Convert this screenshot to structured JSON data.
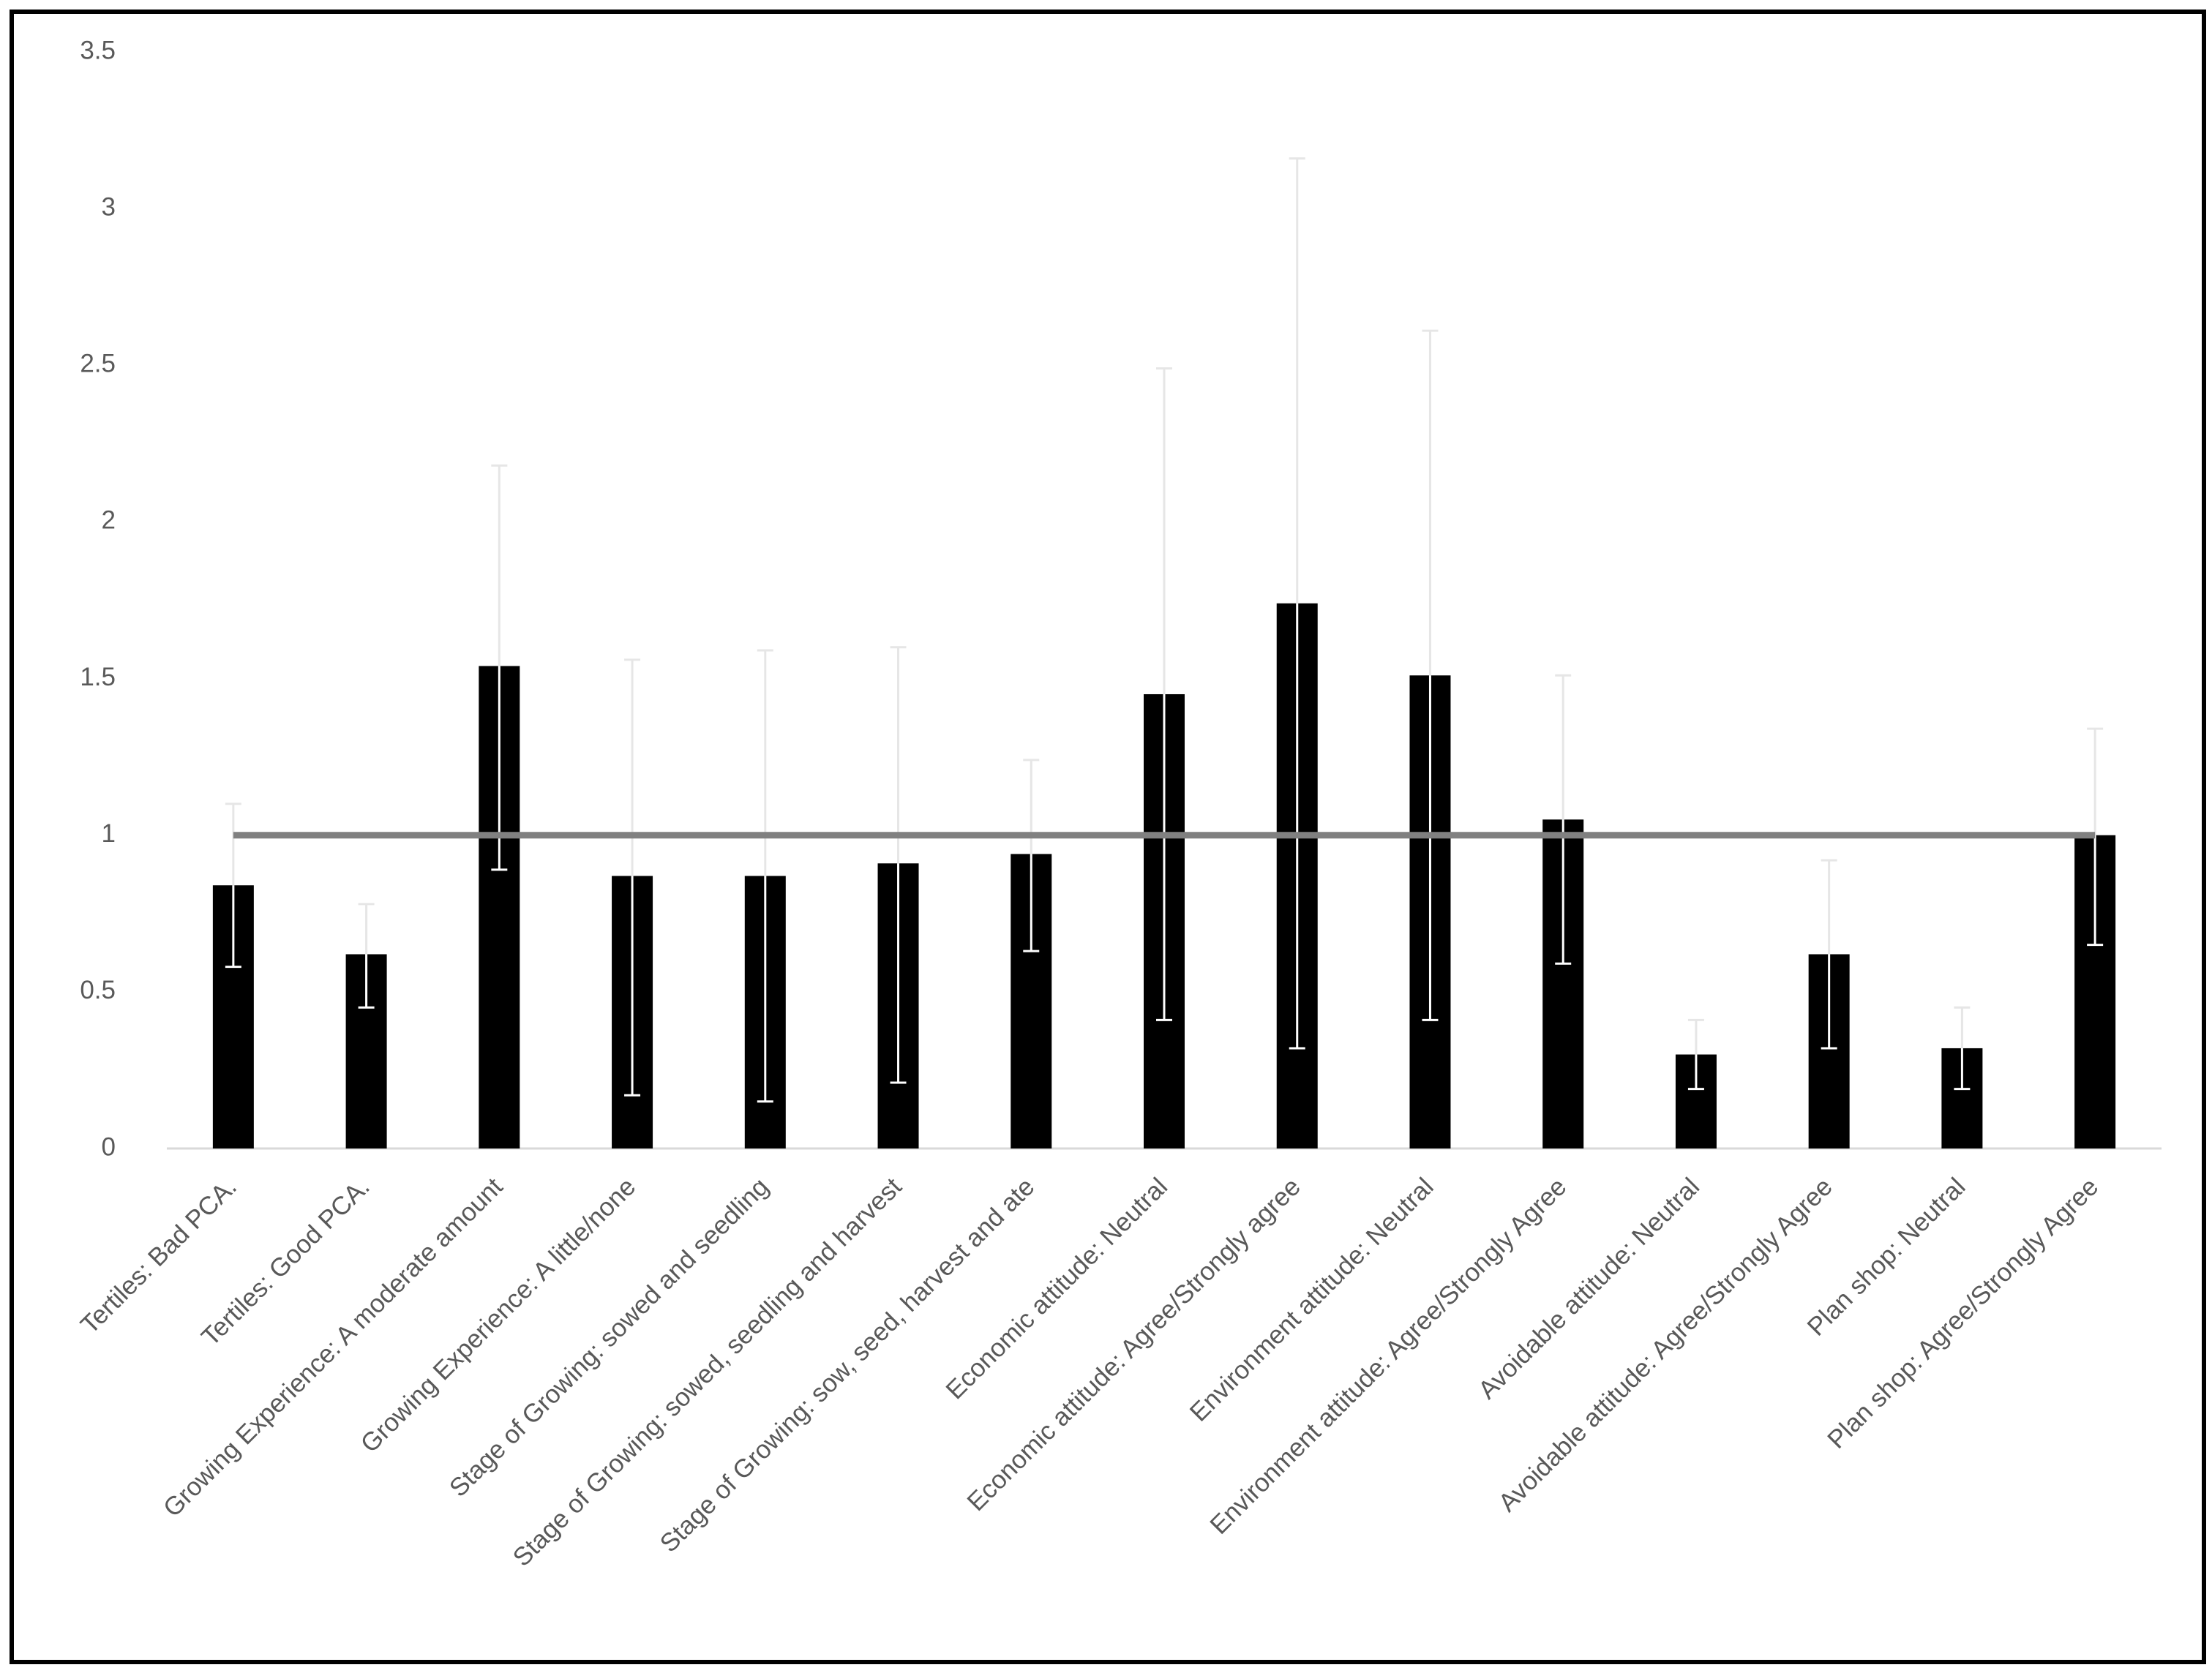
{
  "chart_data": {
    "type": "bar",
    "categories": [
      "Tertiles: Bad PCA.",
      "Tertiles: Good PCA.",
      "Growing Experience: A moderate amount",
      "Growing Experience: A little/none",
      "Stage of Growing: sowed and seedling",
      "Stage of Growing: sowed, seedling and harvest",
      "Stage of Growing: sow, seed, harvest and ate",
      "Economic attitude: Neutral",
      "Economic attitude: Agree/Strongly agree",
      "Environment attitude: Neutral",
      "Environment attitude: Agree/Strongly Agree",
      "Avoidable attitude: Neutral",
      "Avoidable attitude: Agree/Strongly Agree",
      "Plan shop: Neutral",
      "Plan shop: Agree/Strongly Agree"
    ],
    "values": [
      0.84,
      0.62,
      1.54,
      0.87,
      0.87,
      0.91,
      0.94,
      1.45,
      1.74,
      1.51,
      1.05,
      0.3,
      0.62,
      0.32,
      1.0
    ],
    "lower": [
      0.58,
      0.45,
      0.89,
      0.17,
      0.15,
      0.21,
      0.63,
      0.41,
      0.32,
      0.41,
      0.59,
      0.19,
      0.32,
      0.19,
      0.65
    ],
    "upper": [
      1.1,
      0.78,
      2.18,
      1.56,
      1.59,
      1.6,
      1.24,
      2.49,
      3.16,
      2.61,
      1.51,
      0.41,
      0.92,
      0.45,
      1.34
    ],
    "color": "#000000",
    "reference_line": 1,
    "reference_color": "#808080",
    "ylim": [
      0,
      3.5
    ],
    "yticks": [
      0,
      0.5,
      1,
      1.5,
      2,
      2.5,
      3,
      3.5
    ],
    "grid": false
  }
}
